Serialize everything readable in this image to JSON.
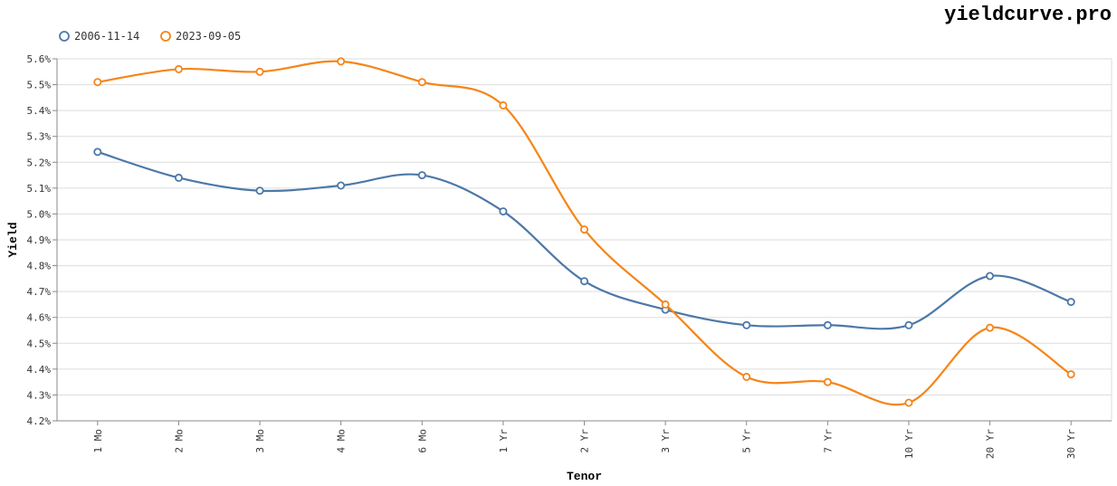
{
  "brand": "yieldcurve.pro",
  "chart_data": {
    "type": "line",
    "xlabel": "Tenor",
    "ylabel": "Yield",
    "categories": [
      "1 Mo",
      "2 Mo",
      "3 Mo",
      "4 Mo",
      "6 Mo",
      "1 Yr",
      "2 Yr",
      "3 Yr",
      "5 Yr",
      "7 Yr",
      "10 Yr",
      "20 Yr",
      "30 Yr"
    ],
    "ylim": [
      4.2,
      5.6
    ],
    "yticks": [
      "4.2%",
      "4.3%",
      "4.4%",
      "4.5%",
      "4.6%",
      "4.7%",
      "4.8%",
      "4.9%",
      "5.0%",
      "5.1%",
      "5.2%",
      "5.3%",
      "5.4%",
      "5.5%",
      "5.6%"
    ],
    "grid": true,
    "legend_position": "top-left",
    "series": [
      {
        "name": "2006-11-14",
        "color": "#4c78a8",
        "values": [
          5.24,
          5.14,
          5.09,
          5.11,
          5.15,
          5.01,
          4.74,
          4.63,
          4.57,
          4.57,
          4.57,
          4.76,
          4.66
        ]
      },
      {
        "name": "2023-09-05",
        "color": "#f58518",
        "values": [
          5.51,
          5.56,
          5.55,
          5.59,
          5.51,
          5.42,
          4.94,
          4.65,
          4.37,
          4.35,
          4.27,
          4.56,
          4.38
        ]
      }
    ]
  }
}
